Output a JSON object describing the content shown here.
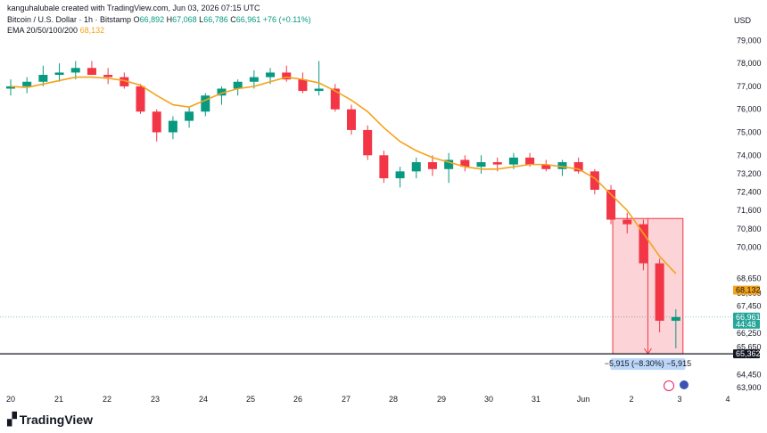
{
  "header": {
    "author_line": "kanguhalubale created with TradingView.com, Jun 03, 2026 07:15 UTC",
    "symbol": "Bitcoin / U.S. Dollar · 1h · Bitstamp",
    "ohlc": {
      "o_label": "O",
      "o": "66,892",
      "h_label": "H",
      "h": "67,068",
      "l_label": "L",
      "l": "66,786",
      "c_label": "C",
      "c": "66,961",
      "change": "+76 (+0.11%)"
    },
    "ema_label": "EMA 20/50/100/200",
    "ema_value": "68,132",
    "currency": "USD"
  },
  "colors": {
    "up": "#089981",
    "down": "#f23645",
    "ema": "#f4a31a",
    "highlight": "#f23645",
    "axis_badge": "#26a69a"
  },
  "chart_data": {
    "type": "candlestick",
    "y_ticks": [
      79000,
      78000,
      77000,
      76000,
      75000,
      74000,
      73200,
      72400,
      71600,
      70800,
      70000,
      68650,
      68000,
      67450,
      66250,
      65650,
      64450,
      63900
    ],
    "y_tick_labels": [
      "79,000",
      "78,000",
      "77,000",
      "76,000",
      "75,000",
      "74,000",
      "73,200",
      "72,400",
      "71,600",
      "70,800",
      "70,000",
      "68,650",
      "68,000",
      "67,450",
      "66,250",
      "65,650",
      "64,450",
      "63,900"
    ],
    "x_labels": [
      "20",
      "21",
      "22",
      "23",
      "24",
      "25",
      "26",
      "27",
      "28",
      "29",
      "30",
      "31",
      "Jun",
      "2",
      "3",
      "4"
    ],
    "price_line": 66961,
    "support_line": 65362,
    "ema_badge": "68,132",
    "price_badge": "66,961",
    "price_badge_sub": "44:48",
    "support_badge": "65,362",
    "measure_label": "−5,915 (−8.30%) −5,915",
    "ema_series": [
      [
        0,
        77000
      ],
      [
        1,
        76950
      ],
      [
        2,
        77100
      ],
      [
        3,
        77250
      ],
      [
        4,
        77400
      ],
      [
        5,
        77400
      ],
      [
        6,
        77350
      ],
      [
        7,
        77250
      ],
      [
        8,
        77050
      ],
      [
        9,
        76600
      ],
      [
        10,
        76200
      ],
      [
        11,
        76100
      ],
      [
        12,
        76400
      ],
      [
        13,
        76700
      ],
      [
        14,
        76900
      ],
      [
        15,
        77000
      ],
      [
        16,
        77200
      ],
      [
        17,
        77400
      ],
      [
        18,
        77300
      ],
      [
        19,
        77150
      ],
      [
        20,
        76800
      ],
      [
        21,
        76400
      ],
      [
        22,
        75900
      ],
      [
        23,
        75200
      ],
      [
        24,
        74600
      ],
      [
        25,
        74200
      ],
      [
        26,
        73900
      ],
      [
        27,
        73700
      ],
      [
        28,
        73500
      ],
      [
        29,
        73400
      ],
      [
        30,
        73400
      ],
      [
        31,
        73500
      ],
      [
        32,
        73600
      ],
      [
        33,
        73600
      ],
      [
        34,
        73500
      ],
      [
        35,
        73400
      ],
      [
        36,
        73000
      ],
      [
        37,
        72300
      ],
      [
        38,
        71600
      ],
      [
        39,
        70600
      ],
      [
        40,
        69600
      ],
      [
        41,
        68850
      ]
    ],
    "candles": [
      [
        0,
        76900,
        77300,
        76600,
        77000
      ],
      [
        1,
        77000,
        77400,
        76700,
        77200
      ],
      [
        2,
        77200,
        77900,
        77000,
        77500
      ],
      [
        3,
        77500,
        78000,
        77200,
        77600
      ],
      [
        4,
        77600,
        78100,
        77300,
        77800
      ],
      [
        5,
        77800,
        78100,
        77500,
        77500
      ],
      [
        6,
        77500,
        77800,
        77100,
        77400
      ],
      [
        7,
        77400,
        77600,
        76900,
        77000
      ],
      [
        8,
        77000,
        77100,
        75800,
        75900
      ],
      [
        9,
        75900,
        76000,
        74600,
        75000
      ],
      [
        10,
        75000,
        75700,
        74700,
        75500
      ],
      [
        11,
        75500,
        76100,
        75200,
        75900
      ],
      [
        12,
        75900,
        76700,
        75700,
        76600
      ],
      [
        13,
        76600,
        77000,
        76200,
        76900
      ],
      [
        14,
        76900,
        77300,
        76600,
        77200
      ],
      [
        15,
        77200,
        77700,
        76900,
        77400
      ],
      [
        16,
        77400,
        77800,
        77100,
        77600
      ],
      [
        17,
        77600,
        77900,
        77200,
        77300
      ],
      [
        18,
        77300,
        77600,
        76700,
        76800
      ],
      [
        19,
        76800,
        78100,
        76600,
        76900
      ],
      [
        20,
        76900,
        77100,
        75900,
        76000
      ],
      [
        21,
        76000,
        76200,
        74900,
        75100
      ],
      [
        22,
        75100,
        75300,
        73800,
        74000
      ],
      [
        23,
        74000,
        74200,
        72800,
        73000
      ],
      [
        24,
        73000,
        73500,
        72600,
        73300
      ],
      [
        25,
        73300,
        73900,
        73000,
        73700
      ],
      [
        26,
        73700,
        74000,
        73100,
        73400
      ],
      [
        27,
        73400,
        74100,
        72800,
        73800
      ],
      [
        28,
        73800,
        74000,
        73300,
        73500
      ],
      [
        29,
        73500,
        74000,
        73200,
        73700
      ],
      [
        30,
        73700,
        73900,
        73300,
        73600
      ],
      [
        31,
        73600,
        74100,
        73400,
        73900
      ],
      [
        32,
        73900,
        74100,
        73500,
        73600
      ],
      [
        33,
        73600,
        73800,
        73300,
        73400
      ],
      [
        34,
        73400,
        73800,
        73100,
        73700
      ],
      [
        35,
        73700,
        73900,
        73200,
        73300
      ],
      [
        36,
        73300,
        73400,
        72300,
        72500
      ],
      [
        37,
        72500,
        72700,
        71000,
        71200
      ],
      [
        38,
        71200,
        71500,
        70600,
        71000
      ],
      [
        39,
        71000,
        71200,
        69000,
        69300
      ],
      [
        40,
        69300,
        69500,
        66300,
        66800
      ],
      [
        41,
        66800,
        67300,
        65600,
        66961
      ]
    ]
  }
}
